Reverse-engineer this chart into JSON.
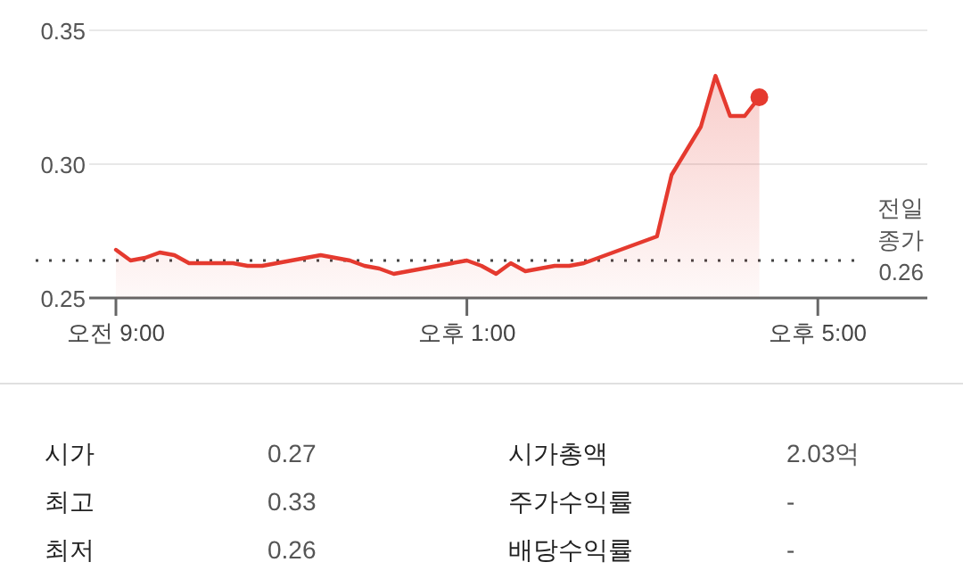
{
  "chart_data": {
    "type": "area",
    "categories": [
      "오전 9:00",
      null,
      null,
      null,
      null,
      null,
      null,
      null,
      null,
      null,
      null,
      null,
      null,
      null,
      null,
      null,
      null,
      null,
      null,
      null,
      null,
      null,
      null,
      null,
      "오후 1:00",
      null,
      null,
      null,
      null,
      null,
      null,
      null,
      null,
      null,
      null,
      null,
      null,
      null,
      null,
      null,
      null,
      null,
      null,
      null,
      null,
      null,
      null,
      null,
      "오후 5:00",
      null,
      null,
      null,
      null,
      null,
      null,
      null
    ],
    "series": [
      {
        "color": "#e53a2f",
        "values": [
          0.268,
          0.264,
          0.265,
          0.267,
          0.266,
          0.263,
          0.263,
          0.263,
          0.263,
          0.262,
          0.262,
          0.263,
          0.264,
          0.265,
          0.266,
          0.265,
          0.264,
          0.262,
          0.261,
          0.259,
          0.26,
          0.261,
          0.262,
          0.263,
          0.264,
          0.262,
          0.259,
          0.263,
          0.26,
          0.261,
          0.262,
          0.262,
          0.263,
          0.265,
          0.267,
          0.269,
          0.271,
          0.273,
          0.296,
          0.305,
          0.314,
          0.333,
          0.318,
          0.318,
          0.325,
          null,
          null,
          null,
          null,
          null,
          null,
          null,
          null,
          null,
          null,
          null
        ]
      }
    ],
    "ylim": [
      0.25,
      0.35
    ],
    "yticks": [
      {
        "value": 0.25,
        "label": "0.25"
      },
      {
        "value": 0.3,
        "label": "0.30"
      },
      {
        "value": 0.35,
        "label": "0.35"
      }
    ],
    "grid": "y",
    "ref_lines": [
      {
        "axis": "y",
        "value": 0.264,
        "label": "전일\n종가\n0.26",
        "line_style": "dotted",
        "color": "#444444"
      }
    ],
    "annotations": [
      "시가",
      "0.27",
      "최고",
      "0.33",
      "최저",
      "0.26",
      "시가총액",
      "2.03억",
      "주가수익률",
      "-",
      "배당수익률",
      "-"
    ]
  }
}
